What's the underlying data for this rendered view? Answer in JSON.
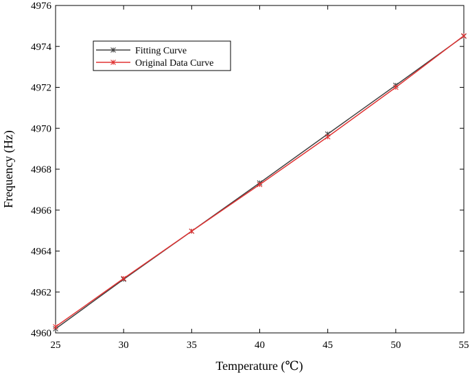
{
  "chart_data": {
    "type": "line",
    "xlabel": "Temperature (℃)",
    "ylabel": "Frequency (Hz)",
    "xlim": [
      25,
      55
    ],
    "ylim": [
      4960,
      4976
    ],
    "xticks": [
      "25",
      "30",
      "35",
      "40",
      "45",
      "50",
      "55"
    ],
    "yticks": [
      "4960",
      "4962",
      "4964",
      "4966",
      "4968",
      "4970",
      "4972",
      "4974",
      "4976"
    ],
    "grid": false,
    "legend_position": "top-left",
    "x": [
      25,
      30,
      35,
      40,
      45,
      50,
      55
    ],
    "series": [
      {
        "name": "Fitting Curve",
        "color": "#404040",
        "marker": "asterisk",
        "values": [
          4960.2,
          4962.62,
          4964.97,
          4967.33,
          4969.72,
          4972.1,
          4974.5
        ]
      },
      {
        "name": "Original Data Curve",
        "color": "#e03131",
        "marker": "asterisk",
        "values": [
          4960.3,
          4962.66,
          4964.97,
          4967.25,
          4969.58,
          4972.0,
          4974.52
        ]
      }
    ]
  }
}
